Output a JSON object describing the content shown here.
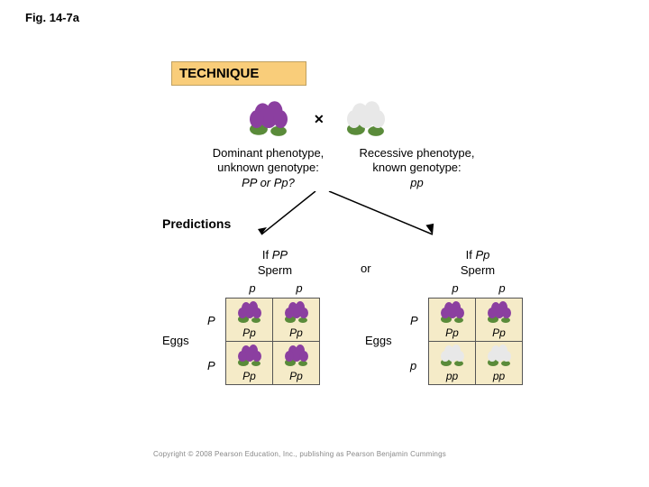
{
  "figure_label": "Fig. 14-7a",
  "technique": {
    "label": "TECHNIQUE",
    "bg_color": "#f9cd7a",
    "border_color": "#bfa060"
  },
  "top_cross": {
    "dominant_flower_color": "#8b3fa0",
    "recessive_flower_color": "#e8e8e8",
    "leaf_color": "#5a8b3a",
    "x_symbol": "✕",
    "dominant": {
      "line1": "Dominant phenotype,",
      "line2": "unknown genotype:",
      "line3": "PP or Pp?"
    },
    "recessive": {
      "line1": "Recessive phenotype,",
      "line2": "known genotype:",
      "line3": "pp"
    }
  },
  "predictions_label": "Predictions",
  "or_label": "or",
  "left": {
    "header_if": "If PP",
    "header_sperm": "Sperm",
    "top_alleles": [
      "p",
      "p"
    ],
    "side_alleles": [
      "P",
      "P"
    ],
    "eggs_label": "Eggs",
    "cells": [
      [
        "Pp",
        "Pp"
      ],
      [
        "Pp",
        "Pp"
      ]
    ],
    "cell_flower_color": "#8b3fa0",
    "cell_bg": "#f5ebc8"
  },
  "right": {
    "header_if": "If Pp",
    "header_sperm": "Sperm",
    "top_alleles": [
      "p",
      "p"
    ],
    "side_alleles": [
      "P",
      "p"
    ],
    "eggs_label": "Eggs",
    "cells": [
      [
        "Pp",
        "Pp"
      ],
      [
        "pp",
        "pp"
      ]
    ],
    "row0_flower_color": "#8b3fa0",
    "row1_flower_color": "#e8e8e8",
    "cell_bg": "#f5ebc8"
  },
  "copyright": "Copyright © 2008 Pearson Education, Inc., publishing as Pearson Benjamin Cummings",
  "colors": {
    "text": "#000000",
    "grid": "#666666"
  }
}
